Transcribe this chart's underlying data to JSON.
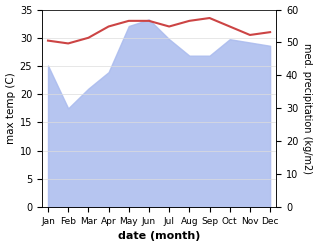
{
  "months": [
    "Jan",
    "Feb",
    "Mar",
    "Apr",
    "May",
    "Jun",
    "Jul",
    "Aug",
    "Sep",
    "Oct",
    "Nov",
    "Dec"
  ],
  "max_temp": [
    29.5,
    29.0,
    30.0,
    32.0,
    33.0,
    33.0,
    32.0,
    33.0,
    33.5,
    32.0,
    30.5,
    31.0
  ],
  "precipitation": [
    43.0,
    30.0,
    36.0,
    41.0,
    55.0,
    57.0,
    51.0,
    46.0,
    46.0,
    51.0,
    50.0,
    49.0
  ],
  "temp_color": "#cc4444",
  "precip_color": "#aabbee",
  "left_ylabel": "max temp (C)",
  "right_ylabel": "med. precipitation (kg/m2)",
  "xlabel": "date (month)",
  "left_ylim": [
    0,
    35
  ],
  "right_ylim": [
    0,
    60
  ],
  "left_yticks": [
    0,
    5,
    10,
    15,
    20,
    25,
    30,
    35
  ],
  "right_yticks": [
    0,
    10,
    20,
    30,
    40,
    50,
    60
  ],
  "bg_color": "#ffffff",
  "grid_color": "#dddddd"
}
